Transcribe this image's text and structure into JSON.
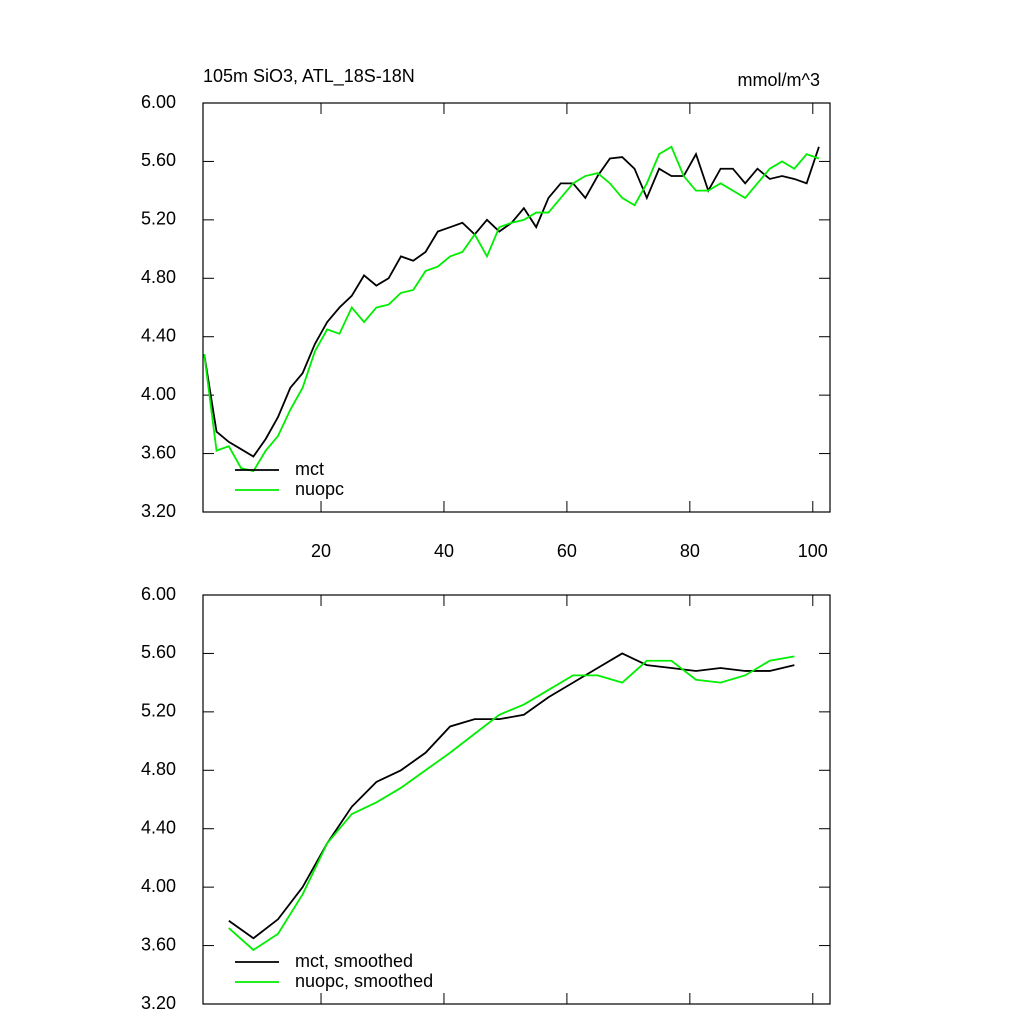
{
  "chart_data": [
    {
      "type": "line",
      "title": "105m SiO3, ATL_18S-18N",
      "subtitle": "mmol/m^3",
      "x": [
        1,
        3,
        5,
        7,
        9,
        11,
        13,
        15,
        17,
        19,
        21,
        23,
        25,
        27,
        29,
        31,
        33,
        35,
        37,
        39,
        41,
        43,
        45,
        47,
        49,
        51,
        53,
        55,
        57,
        59,
        61,
        63,
        65,
        67,
        69,
        71,
        73,
        75,
        77,
        79,
        81,
        83,
        85,
        87,
        89,
        91,
        93,
        95,
        97,
        99,
        101
      ],
      "series": [
        {
          "name": "mct",
          "color": "#000000",
          "values": [
            4.28,
            3.75,
            3.68,
            3.63,
            3.58,
            3.7,
            3.85,
            4.05,
            4.15,
            4.35,
            4.5,
            4.6,
            4.68,
            4.82,
            4.75,
            4.8,
            4.95,
            4.92,
            4.98,
            5.12,
            5.15,
            5.18,
            5.1,
            5.2,
            5.12,
            5.18,
            5.28,
            5.15,
            5.35,
            5.45,
            5.45,
            5.35,
            5.5,
            5.62,
            5.63,
            5.55,
            5.35,
            5.55,
            5.5,
            5.5,
            5.65,
            5.4,
            5.55,
            5.55,
            5.45,
            5.55,
            5.48,
            5.5,
            5.48,
            5.45,
            5.7
          ]
        },
        {
          "name": "nuopc",
          "color": "#00ee00",
          "values": [
            4.28,
            3.62,
            3.65,
            3.5,
            3.48,
            3.62,
            3.72,
            3.9,
            4.05,
            4.3,
            4.45,
            4.42,
            4.6,
            4.5,
            4.6,
            4.62,
            4.7,
            4.72,
            4.85,
            4.88,
            4.95,
            4.98,
            5.1,
            4.95,
            5.15,
            5.18,
            5.2,
            5.25,
            5.25,
            5.35,
            5.45,
            5.5,
            5.52,
            5.45,
            5.35,
            5.3,
            5.45,
            5.65,
            5.7,
            5.5,
            5.4,
            5.4,
            5.45,
            5.4,
            5.35,
            5.45,
            5.55,
            5.6,
            5.55,
            5.65,
            5.62
          ]
        }
      ],
      "xlim": [
        0.8,
        102.8
      ],
      "xticks": [
        20,
        40,
        60,
        80,
        100
      ],
      "xtick_labels": true,
      "ylim": [
        3.2,
        6.0
      ],
      "yticks": [
        {
          "value": 3.2,
          "label": "3.20"
        },
        {
          "value": 3.6,
          "label": "3.60"
        },
        {
          "value": 4.0,
          "label": "4.00"
        },
        {
          "value": 4.4,
          "label": "4.40"
        },
        {
          "value": 4.8,
          "label": "4.80"
        },
        {
          "value": 5.2,
          "label": "5.20"
        },
        {
          "value": 5.6,
          "label": "5.60"
        },
        {
          "value": 6.0,
          "label": "6.00"
        }
      ],
      "legend": "lower left"
    },
    {
      "type": "line",
      "x": [
        5,
        9,
        13,
        17,
        21,
        25,
        29,
        33,
        37,
        41,
        45,
        49,
        53,
        57,
        61,
        65,
        69,
        73,
        77,
        81,
        85,
        89,
        93,
        97
      ],
      "series": [
        {
          "name": "mct, smoothed",
          "color": "#000000",
          "values": [
            3.77,
            3.65,
            3.78,
            4.0,
            4.3,
            4.55,
            4.72,
            4.8,
            4.92,
            5.1,
            5.15,
            5.15,
            5.18,
            5.3,
            5.4,
            5.5,
            5.6,
            5.52,
            5.5,
            5.48,
            5.5,
            5.48,
            5.48,
            5.52
          ]
        },
        {
          "name": "nuopc, smoothed",
          "color": "#00ee00",
          "values": [
            3.72,
            3.57,
            3.68,
            3.95,
            4.3,
            4.5,
            4.58,
            4.68,
            4.8,
            4.92,
            5.05,
            5.18,
            5.25,
            5.35,
            5.45,
            5.45,
            5.4,
            5.55,
            5.55,
            5.42,
            5.4,
            5.45,
            5.55,
            5.58
          ]
        }
      ],
      "xlim": [
        0.8,
        102.8
      ],
      "xticks": [
        20,
        40,
        60,
        80,
        100
      ],
      "xtick_labels": false,
      "ylim": [
        3.2,
        6.0
      ],
      "yticks": [
        {
          "value": 3.2,
          "label": "3.20"
        },
        {
          "value": 3.6,
          "label": "3.60"
        },
        {
          "value": 4.0,
          "label": "4.00"
        },
        {
          "value": 4.4,
          "label": "4.40"
        },
        {
          "value": 4.8,
          "label": "4.80"
        },
        {
          "value": 5.2,
          "label": "5.20"
        },
        {
          "value": 5.6,
          "label": "5.60"
        },
        {
          "value": 6.0,
          "label": "6.00"
        }
      ],
      "legend": "lower left"
    }
  ]
}
